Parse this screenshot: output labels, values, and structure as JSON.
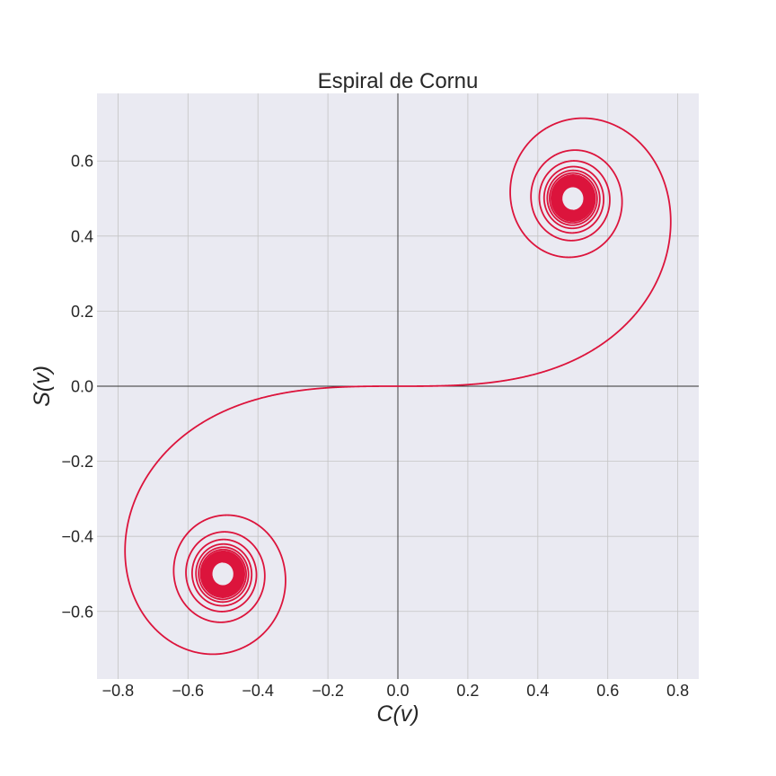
{
  "chart_data": {
    "type": "line",
    "title": "Espiral de Cornu",
    "xlabel": "C(v)",
    "ylabel": "S(v)",
    "xlim": [
      -0.86,
      0.86
    ],
    "ylim": [
      -0.78,
      0.78
    ],
    "xticks": [
      -0.8,
      -0.6,
      -0.4,
      -0.2,
      0.0,
      0.2,
      0.4,
      0.6,
      0.8
    ],
    "xtick_labels": [
      "−0.8",
      "−0.6",
      "−0.4",
      "−0.2",
      "0.0",
      "0.2",
      "0.4",
      "0.6",
      "0.8"
    ],
    "yticks": [
      -0.6,
      -0.4,
      -0.2,
      0.0,
      0.2,
      0.4,
      0.6
    ],
    "ytick_labels": [
      "−0.6",
      "−0.4",
      "−0.2",
      "0.0",
      "0.2",
      "0.4",
      "0.6"
    ],
    "grid": true,
    "zero_lines": true,
    "series": [
      {
        "function": "Fresnel integrals C(v), S(v)",
        "v_range": [
          -10,
          10
        ],
        "color": "#dc143c"
      }
    ],
    "background_color": "#eaeaf2",
    "grid_color": "#c4c4c4"
  }
}
